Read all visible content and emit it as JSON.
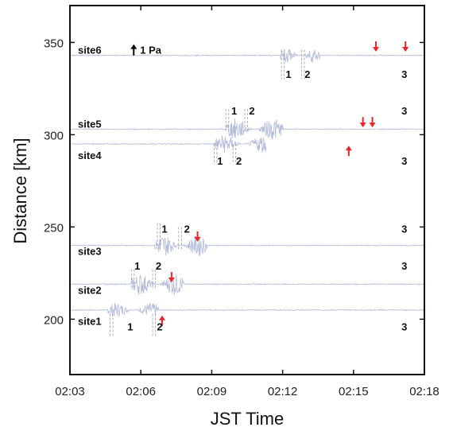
{
  "chart_data": {
    "type": "line",
    "xlabel": "JST Time",
    "ylabel": "Distance [km]",
    "x_ticks": [
      "02:03",
      "02:06",
      "02:09",
      "02:12",
      "02:15",
      "02:18"
    ],
    "x_tick_minutes": [
      0,
      3,
      6,
      9,
      12,
      15
    ],
    "xlim_minutes": [
      0,
      15
    ],
    "y_ticks": [
      200,
      250,
      300,
      350
    ],
    "ylim": [
      170,
      370
    ],
    "grid": false,
    "scale_bar": {
      "label": "1 Pa",
      "x_minute": 2.7,
      "y_km": 346
    },
    "sites": [
      {
        "name": "site1",
        "distance_km": 205,
        "label_km": 199,
        "signal_start": 1.6,
        "signal_end": 3.8,
        "amp_km": 4
      },
      {
        "name": "site2",
        "distance_km": 219,
        "label_km": 216,
        "signal_start": 2.6,
        "signal_end": 4.8,
        "amp_km": 6
      },
      {
        "name": "site3",
        "distance_km": 240,
        "label_km": 237,
        "signal_start": 3.6,
        "signal_end": 5.8,
        "amp_km": 6
      },
      {
        "name": "site4",
        "distance_km": 295,
        "label_km": 289,
        "signal_start": 6.1,
        "signal_end": 8.6,
        "amp_km": 5,
        "trace_end": 8.3
      },
      {
        "name": "site5",
        "distance_km": 303,
        "label_km": 306,
        "signal_start": 6.6,
        "signal_end": 9.0,
        "amp_km": 6
      },
      {
        "name": "site6",
        "distance_km": 343,
        "label_km": 346,
        "signal_start": 8.9,
        "signal_end": 10.6,
        "amp_km": 4
      }
    ],
    "phase_labels": [
      {
        "site": "site1",
        "text": "1",
        "x_minute": 2.55,
        "y_km": 196,
        "bracket_x": 1.7,
        "bracket_top": 203,
        "bracket_bottom": 191
      },
      {
        "site": "site1",
        "text": "2",
        "x_minute": 3.8,
        "y_km": 196,
        "bracket_x": 3.5,
        "bracket_top": 203,
        "bracket_bottom": 191
      },
      {
        "site": "site1",
        "text": "3",
        "x_minute": 14.15,
        "y_km": 196
      },
      {
        "site": "site2",
        "text": "1",
        "x_minute": 2.85,
        "y_km": 229,
        "bracket_x": 2.6,
        "bracket_top": 227,
        "bracket_bottom": 216
      },
      {
        "site": "site2",
        "text": "2",
        "x_minute": 3.75,
        "y_km": 229,
        "bracket_x": 3.5,
        "bracket_top": 227,
        "bracket_bottom": 216
      },
      {
        "site": "site2",
        "text": "3",
        "x_minute": 14.15,
        "y_km": 229
      },
      {
        "site": "site3",
        "text": "1",
        "x_minute": 4.0,
        "y_km": 249,
        "bracket_x": 3.7,
        "bracket_top": 252,
        "bracket_bottom": 237
      },
      {
        "site": "site3",
        "text": "2",
        "x_minute": 4.95,
        "y_km": 249,
        "bracket_x": 4.6,
        "bracket_top": 250,
        "bracket_bottom": 237
      },
      {
        "site": "site3",
        "text": "3",
        "x_minute": 14.15,
        "y_km": 249
      },
      {
        "site": "site4",
        "text": "1",
        "x_minute": 6.35,
        "y_km": 286,
        "bracket_x": 6.1,
        "bracket_top": 295,
        "bracket_bottom": 284
      },
      {
        "site": "site4",
        "text": "2",
        "x_minute": 7.15,
        "y_km": 286,
        "bracket_x": 6.9,
        "bracket_top": 295,
        "bracket_bottom": 284
      },
      {
        "site": "site4",
        "text": "3",
        "x_minute": 14.15,
        "y_km": 286
      },
      {
        "site": "site5",
        "text": "1",
        "x_minute": 6.95,
        "y_km": 313,
        "bracket_x": 6.6,
        "bracket_top": 314,
        "bracket_bottom": 301
      },
      {
        "site": "site5",
        "text": "2",
        "x_minute": 7.7,
        "y_km": 313,
        "bracket_x": 7.4,
        "bracket_top": 314,
        "bracket_bottom": 301
      },
      {
        "site": "site5",
        "text": "3",
        "x_minute": 14.15,
        "y_km": 313
      },
      {
        "site": "site6",
        "text": "1",
        "x_minute": 9.25,
        "y_km": 333,
        "bracket_x": 8.95,
        "bracket_top": 346,
        "bracket_bottom": 330
      },
      {
        "site": "site6",
        "text": "2",
        "x_minute": 10.05,
        "y_km": 333,
        "bracket_x": 9.8,
        "bracket_top": 346,
        "bracket_bottom": 330
      },
      {
        "site": "site6",
        "text": "3",
        "x_minute": 14.15,
        "y_km": 333
      }
    ],
    "arrows": [
      {
        "site": "site1",
        "x_minute": 3.9,
        "y_km": 199,
        "direction": "up"
      },
      {
        "site": "site2",
        "x_minute": 4.3,
        "y_km": 223,
        "direction": "down"
      },
      {
        "site": "site3",
        "x_minute": 5.4,
        "y_km": 245,
        "direction": "down"
      },
      {
        "site": "site4",
        "x_minute": 11.8,
        "y_km": 291,
        "direction": "up"
      },
      {
        "site": "site5",
        "x_minute": 12.4,
        "y_km": 307,
        "direction": "down"
      },
      {
        "site": "site5",
        "x_minute": 12.8,
        "y_km": 307,
        "direction": "down"
      },
      {
        "site": "site6",
        "x_minute": 12.95,
        "y_km": 348,
        "direction": "down"
      },
      {
        "site": "site6",
        "x_minute": 14.2,
        "y_km": 348,
        "direction": "down"
      }
    ],
    "colors": {
      "trace": "#b3bcd9",
      "arrow": "#e8262d",
      "axis": "#111111",
      "bracket": "#9a9a9a",
      "scale_arrow": "#000000"
    }
  }
}
